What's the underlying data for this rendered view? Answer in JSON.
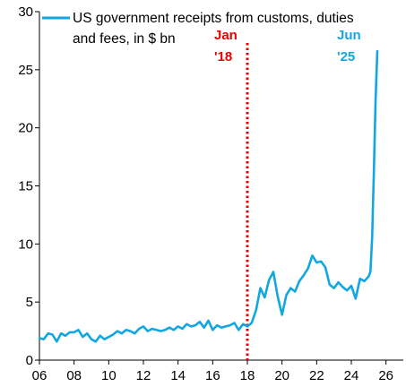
{
  "chart_data": {
    "type": "line",
    "title": "",
    "xlabel": "",
    "ylabel": "",
    "xlim": [
      2006,
      2027
    ],
    "ylim": [
      0,
      30
    ],
    "x_ticks": [
      2006,
      2008,
      2010,
      2012,
      2014,
      2016,
      2018,
      2020,
      2022,
      2024,
      2026
    ],
    "x_tick_labels": [
      "06",
      "08",
      "10",
      "12",
      "14",
      "16",
      "18",
      "20",
      "22",
      "24",
      "26"
    ],
    "y_ticks": [
      0,
      5,
      10,
      15,
      20,
      25,
      30
    ],
    "y_tick_labels": [
      "0",
      "5",
      "10",
      "15",
      "20",
      "25",
      "30"
    ],
    "grid": false,
    "legend_position": "top-left",
    "series": [
      {
        "name_lines": [
          "US government receipts from customs, duties",
          "and fees, in $ bn"
        ],
        "color": "#12A7E0",
        "x": [
          2006.0,
          2006.25,
          2006.5,
          2006.75,
          2007.0,
          2007.25,
          2007.5,
          2007.75,
          2008.0,
          2008.25,
          2008.5,
          2008.75,
          2009.0,
          2009.25,
          2009.5,
          2009.75,
          2010.0,
          2010.25,
          2010.5,
          2010.75,
          2011.0,
          2011.25,
          2011.5,
          2011.75,
          2012.0,
          2012.25,
          2012.5,
          2012.75,
          2013.0,
          2013.25,
          2013.5,
          2013.75,
          2014.0,
          2014.25,
          2014.5,
          2014.75,
          2015.0,
          2015.25,
          2015.5,
          2015.75,
          2016.0,
          2016.25,
          2016.5,
          2016.75,
          2017.0,
          2017.25,
          2017.5,
          2017.75,
          2018.0,
          2018.25,
          2018.5,
          2018.75,
          2019.0,
          2019.25,
          2019.5,
          2019.75,
          2020.0,
          2020.25,
          2020.5,
          2020.75,
          2021.0,
          2021.25,
          2021.5,
          2021.75,
          2022.0,
          2022.25,
          2022.5,
          2022.75,
          2023.0,
          2023.25,
          2023.5,
          2023.75,
          2024.0,
          2024.25,
          2024.5,
          2024.75,
          2025.0,
          2025.1,
          2025.2,
          2025.3,
          2025.4,
          2025.5
        ],
        "y": [
          1.9,
          1.8,
          2.3,
          2.2,
          1.6,
          2.3,
          2.1,
          2.4,
          2.4,
          2.6,
          2.0,
          2.3,
          1.8,
          1.6,
          2.1,
          1.8,
          2.0,
          2.2,
          2.5,
          2.3,
          2.6,
          2.5,
          2.3,
          2.7,
          2.9,
          2.5,
          2.7,
          2.6,
          2.5,
          2.6,
          2.8,
          2.6,
          2.9,
          2.7,
          3.1,
          2.9,
          3.0,
          3.3,
          2.8,
          3.4,
          2.6,
          3.0,
          2.8,
          2.9,
          3.0,
          3.2,
          2.6,
          3.1,
          2.9,
          3.2,
          4.3,
          6.2,
          5.4,
          6.9,
          7.6,
          5.5,
          3.9,
          5.6,
          6.2,
          5.9,
          6.8,
          7.3,
          7.9,
          9.0,
          8.4,
          8.5,
          8.0,
          6.5,
          6.2,
          6.7,
          6.3,
          6.0,
          6.4,
          5.3,
          7.0,
          6.8,
          7.2,
          7.6,
          10.5,
          16.0,
          22.5,
          26.6
        ]
      }
    ],
    "annotations": [
      {
        "x": 2018.0,
        "lines": [
          "Jan",
          "'18"
        ],
        "color": "#E60000",
        "line_style": "dotted"
      },
      {
        "x": 2025.5,
        "lines": [
          "Jun",
          "'25"
        ],
        "color": "#12A7E0"
      }
    ]
  }
}
